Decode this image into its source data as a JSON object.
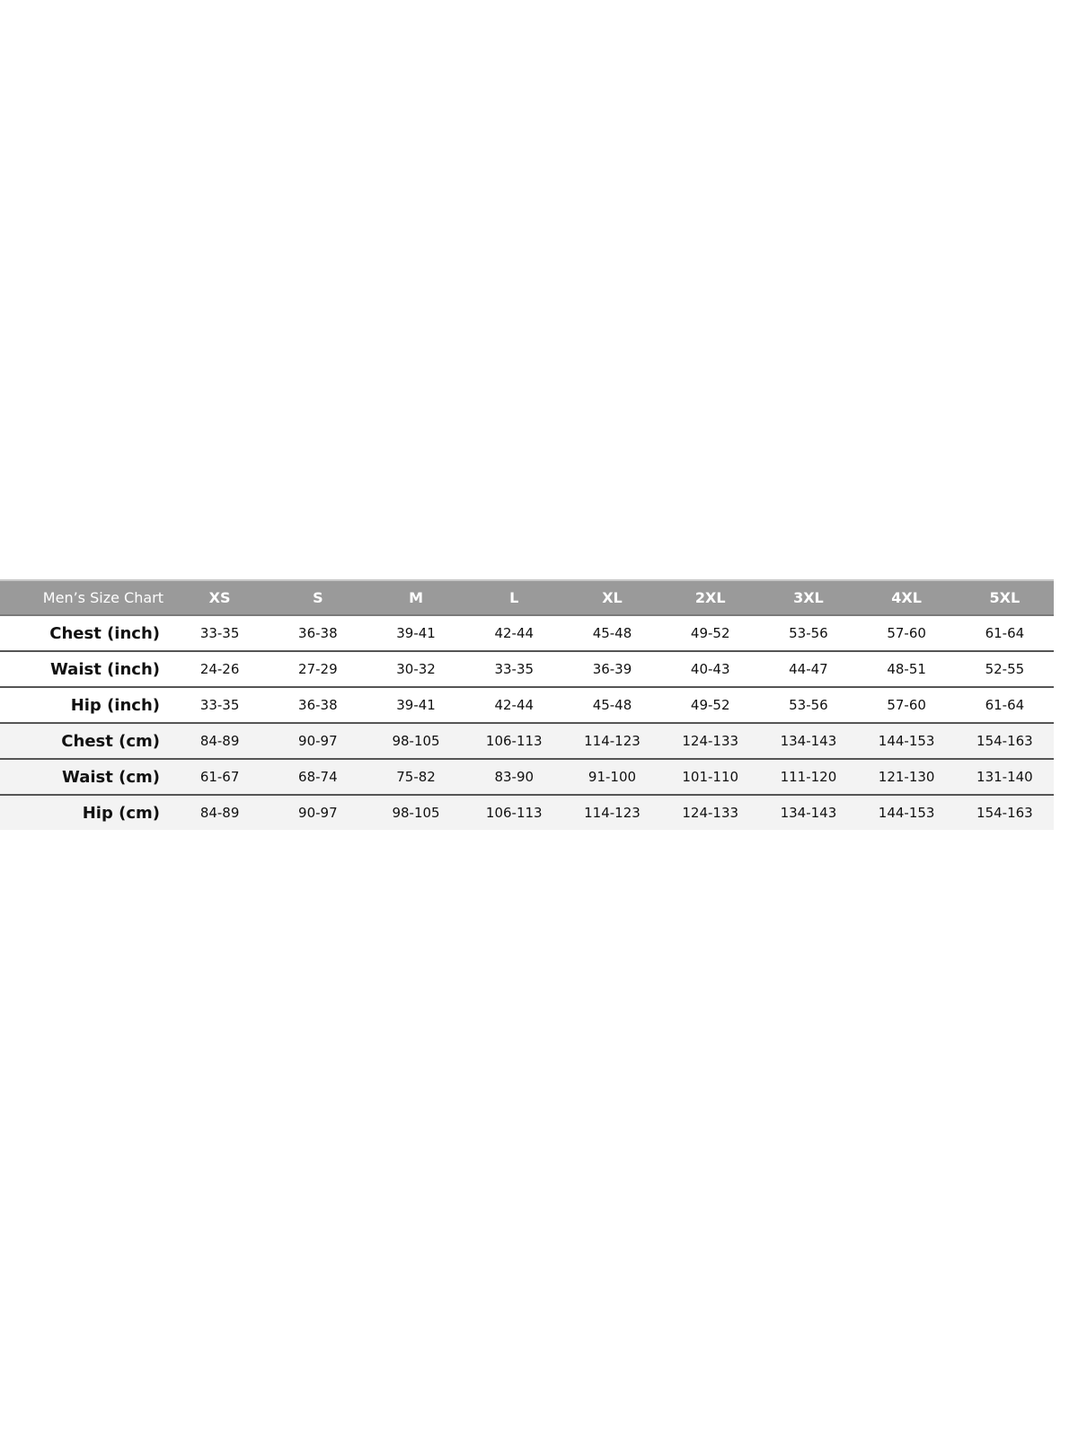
{
  "table": {
    "title": "Men’s Size Chart",
    "sizes": [
      "XS",
      "S",
      "M",
      "L",
      "XL",
      "2XL",
      "3XL",
      "4XL",
      "5XL"
    ],
    "rows": [
      {
        "label": "Chest (inch)",
        "values": [
          "33-35",
          "36-38",
          "39-41",
          "42-44",
          "45-48",
          "49-52",
          "53-56",
          "57-60",
          "61-64"
        ]
      },
      {
        "label": "Waist (inch)",
        "values": [
          "24-26",
          "27-29",
          "30-32",
          "33-35",
          "36-39",
          "40-43",
          "44-47",
          "48-51",
          "52-55"
        ]
      },
      {
        "label": "Hip (inch)",
        "values": [
          "33-35",
          "36-38",
          "39-41",
          "42-44",
          "45-48",
          "49-52",
          "53-56",
          "57-60",
          "61-64"
        ]
      },
      {
        "label": "Chest (cm)",
        "values": [
          "84-89",
          "90-97",
          "98-105",
          "106-113",
          "114-123",
          "124-133",
          "134-143",
          "144-153",
          "154-163"
        ]
      },
      {
        "label": "Waist (cm)",
        "values": [
          "61-67",
          "68-74",
          "75-82",
          "83-90",
          "91-100",
          "101-110",
          "111-120",
          "121-130",
          "131-140"
        ]
      },
      {
        "label": "Hip (cm)",
        "values": [
          "84-89",
          "90-97",
          "98-105",
          "106-113",
          "114-123",
          "124-133",
          "134-143",
          "144-153",
          "154-163"
        ]
      }
    ]
  },
  "colors": {
    "header_bg": "#9a9a9a",
    "header_text": "#ffffff",
    "cm_row_bg": "#f3f3f3",
    "divider": "#555555"
  }
}
